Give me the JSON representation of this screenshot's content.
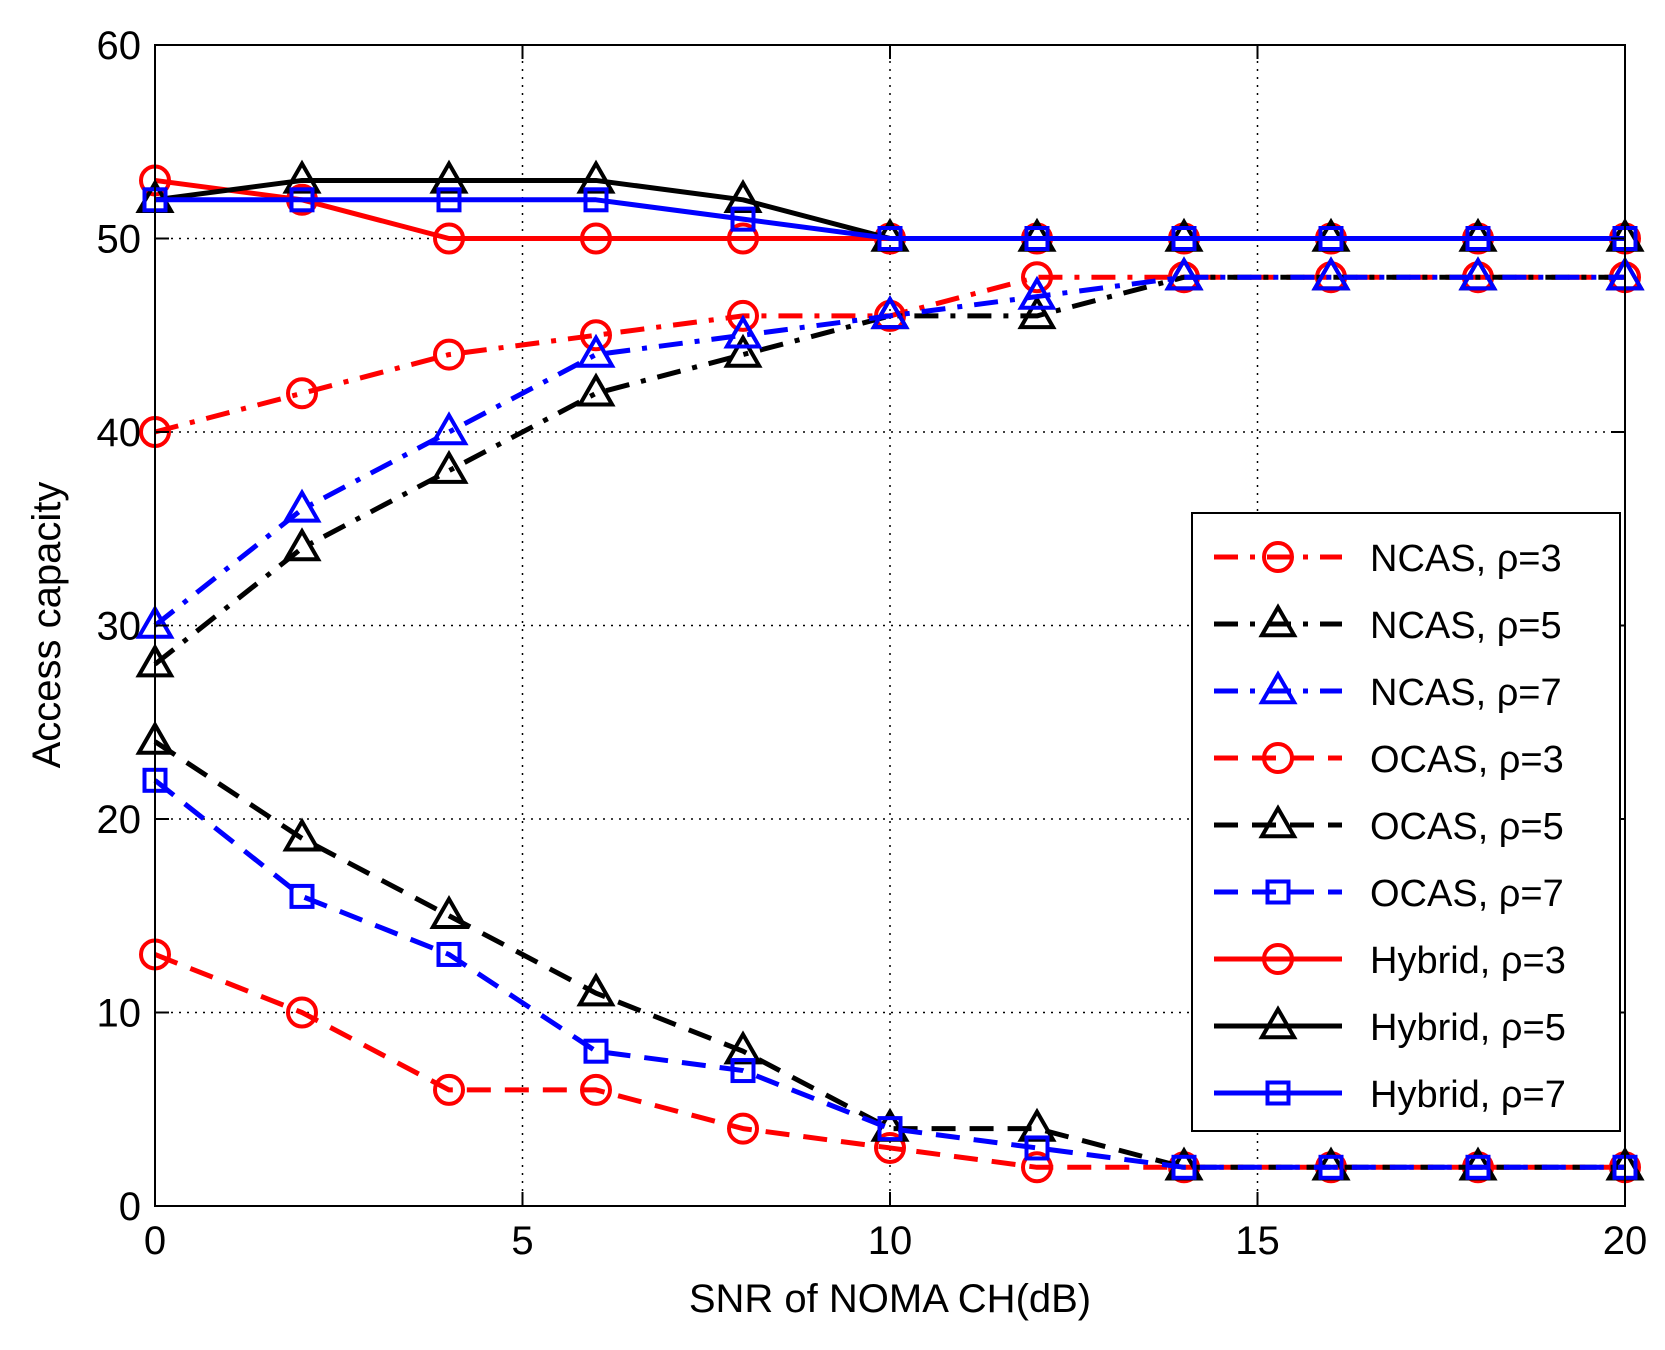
{
  "chart_data": {
    "type": "line",
    "title": "",
    "xlabel": "SNR of NOMA CH(dB)",
    "ylabel": "Access capacity",
    "xlim": [
      0,
      20
    ],
    "ylim": [
      0,
      60
    ],
    "xticks": [
      0,
      5,
      10,
      15,
      20
    ],
    "yticks": [
      0,
      10,
      20,
      30,
      40,
      50,
      60
    ],
    "grid": true,
    "legend_position": "right",
    "x": [
      0,
      2,
      4,
      6,
      8,
      10,
      12,
      14,
      16,
      18,
      20
    ],
    "series": [
      {
        "name": "NCAS, ρ=3",
        "color": "#ff0000",
        "dash": "dashdot",
        "marker": "circle",
        "values": [
          40,
          42,
          44,
          45,
          46,
          46,
          48,
          48,
          48,
          48,
          48
        ]
      },
      {
        "name": "NCAS, ρ=5",
        "color": "#000000",
        "dash": "dashdot",
        "marker": "triangle",
        "values": [
          28,
          34,
          38,
          42,
          44,
          46,
          46,
          48,
          48,
          48,
          48
        ]
      },
      {
        "name": "NCAS, ρ=7",
        "color": "#0000ff",
        "dash": "dashdot",
        "marker": "triangle",
        "values": [
          30,
          36,
          40,
          44,
          45,
          46,
          47,
          48,
          48,
          48,
          48
        ]
      },
      {
        "name": "OCAS, ρ=3",
        "color": "#ff0000",
        "dash": "dashed",
        "marker": "circle",
        "values": [
          13,
          10,
          6,
          6,
          4,
          3,
          2,
          2,
          2,
          2,
          2
        ]
      },
      {
        "name": "OCAS, ρ=5",
        "color": "#000000",
        "dash": "dashed",
        "marker": "triangle",
        "values": [
          24,
          19,
          15,
          11,
          8,
          4,
          4,
          2,
          2,
          2,
          2
        ]
      },
      {
        "name": "OCAS, ρ=7",
        "color": "#0000ff",
        "dash": "dashed",
        "marker": "square",
        "values": [
          22,
          16,
          13,
          8,
          7,
          4,
          3,
          2,
          2,
          2,
          2
        ]
      },
      {
        "name": "Hybrid, ρ=3",
        "color": "#ff0000",
        "dash": "solid",
        "marker": "circle",
        "values": [
          53,
          52,
          50,
          50,
          50,
          50,
          50,
          50,
          50,
          50,
          50
        ]
      },
      {
        "name": "Hybrid, ρ=5",
        "color": "#000000",
        "dash": "solid",
        "marker": "triangle",
        "values": [
          52,
          53,
          53,
          53,
          52,
          50,
          50,
          50,
          50,
          50,
          50
        ]
      },
      {
        "name": "Hybrid, ρ=7",
        "color": "#0000ff",
        "dash": "solid",
        "marker": "square",
        "values": [
          52,
          52,
          52,
          52,
          51,
          50,
          50,
          50,
          50,
          50,
          50
        ]
      }
    ]
  }
}
